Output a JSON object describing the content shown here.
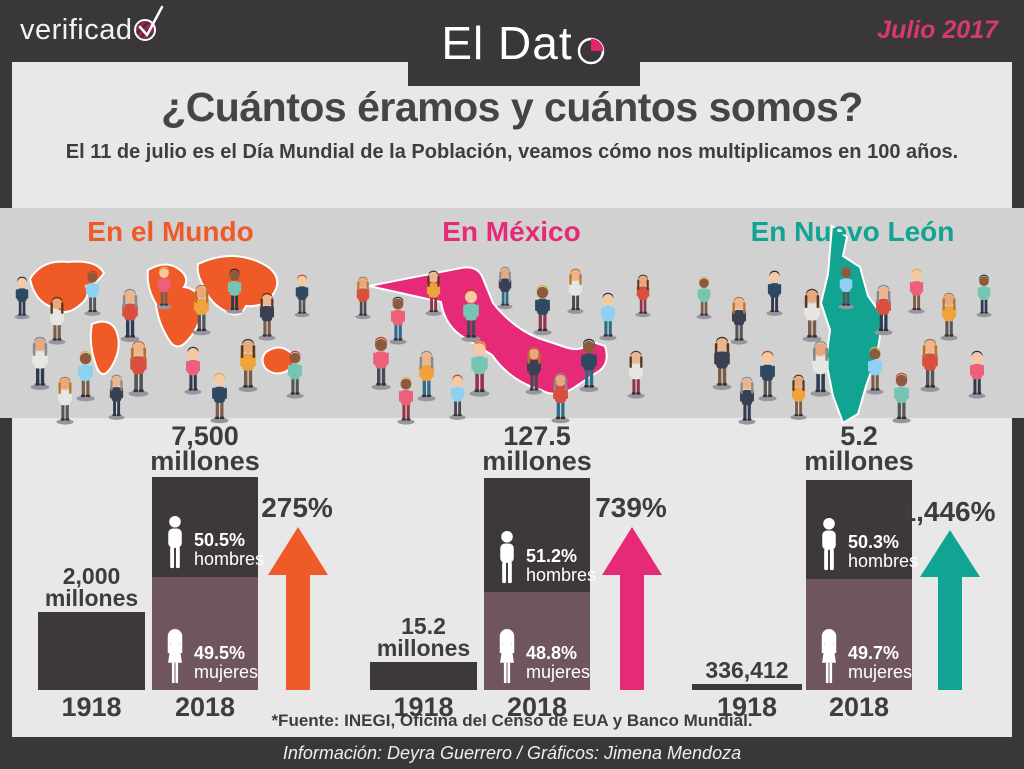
{
  "header": {
    "logo_prefix": "verificad",
    "logo_o_icon": "check-over-o",
    "brand_prefix": "El Dat",
    "brand_o_icon": "pie-chart-o",
    "edition_date": "Julio 2017"
  },
  "intro": {
    "title": "¿Cuántos éramos y cuántos somos?",
    "subtitle": "El 11 de julio es el Día Mundial de la Población, veamos cómo nos multiplicamos en 100 años."
  },
  "regions": [
    {
      "name": "En el Mundo",
      "accent": "#ef5b28",
      "old": {
        "value": "2,000",
        "unit": "millones",
        "year": "1918"
      },
      "new": {
        "value": "7,500",
        "unit": "millones",
        "year": "2018"
      },
      "growth": "275%",
      "men": {
        "pct": "50.5%",
        "label": "hombres"
      },
      "women": {
        "pct": "49.5%",
        "label": "mujeres"
      }
    },
    {
      "name": "En México",
      "accent": "#e62a78",
      "old": {
        "value": "15.2",
        "unit": "millones",
        "year": "1918"
      },
      "new": {
        "value": "127.5",
        "unit": "millones",
        "year": "2018"
      },
      "growth": "739%",
      "men": {
        "pct": "51.2%",
        "label": "hombres"
      },
      "women": {
        "pct": "48.8%",
        "label": "mujeres"
      }
    },
    {
      "name": "En Nuevo León",
      "accent": "#12a492",
      "old": {
        "value": "336,412",
        "unit": "",
        "year": "1918"
      },
      "new": {
        "value": "5.2",
        "unit": "millones",
        "year": "2018"
      },
      "growth": "1,446%",
      "men": {
        "pct": "50.3%",
        "label": "hombres"
      },
      "women": {
        "pct": "49.7%",
        "label": "mujeres"
      }
    }
  ],
  "chart_data": [
    {
      "type": "bar",
      "title": "En el Mundo",
      "categories": [
        "1918",
        "2018"
      ],
      "values_millions": [
        2000,
        7500
      ],
      "value_labels": [
        "2,000 millones",
        "7,500 millones"
      ],
      "growth_pct": 275,
      "men_pct": 50.5,
      "women_pct": 49.5,
      "accent_color": "#ef5b28"
    },
    {
      "type": "bar",
      "title": "En México",
      "categories": [
        "1918",
        "2018"
      ],
      "values_millions": [
        15.2,
        127.5
      ],
      "value_labels": [
        "15.2 millones",
        "127.5 millones"
      ],
      "growth_pct": 739,
      "men_pct": 51.2,
      "women_pct": 48.8,
      "accent_color": "#e62a78"
    },
    {
      "type": "bar",
      "title": "En Nuevo León",
      "categories": [
        "1918",
        "2018"
      ],
      "values_absolute": [
        336412,
        5200000
      ],
      "value_labels": [
        "336,412",
        "5.2 millones"
      ],
      "growth_pct": 1446,
      "men_pct": 50.3,
      "women_pct": 49.7,
      "accent_color": "#12a492"
    }
  ],
  "footer": {
    "source": "*Fuente: INEGI, Oficina del Censo de EUA y Banco Mundial.",
    "credits": "Información: Deyra Guerrero / Gráficos: Jimena Mendoza"
  },
  "colors": {
    "background_dark": "#3a373a",
    "panel_light": "#e9e8e9",
    "band_gray": "#d2d1d2",
    "bar_dark": "#3d393b",
    "bar_mauve": "#6f555c",
    "headline_text": "#474449",
    "date_pink": "#d63a6e"
  }
}
